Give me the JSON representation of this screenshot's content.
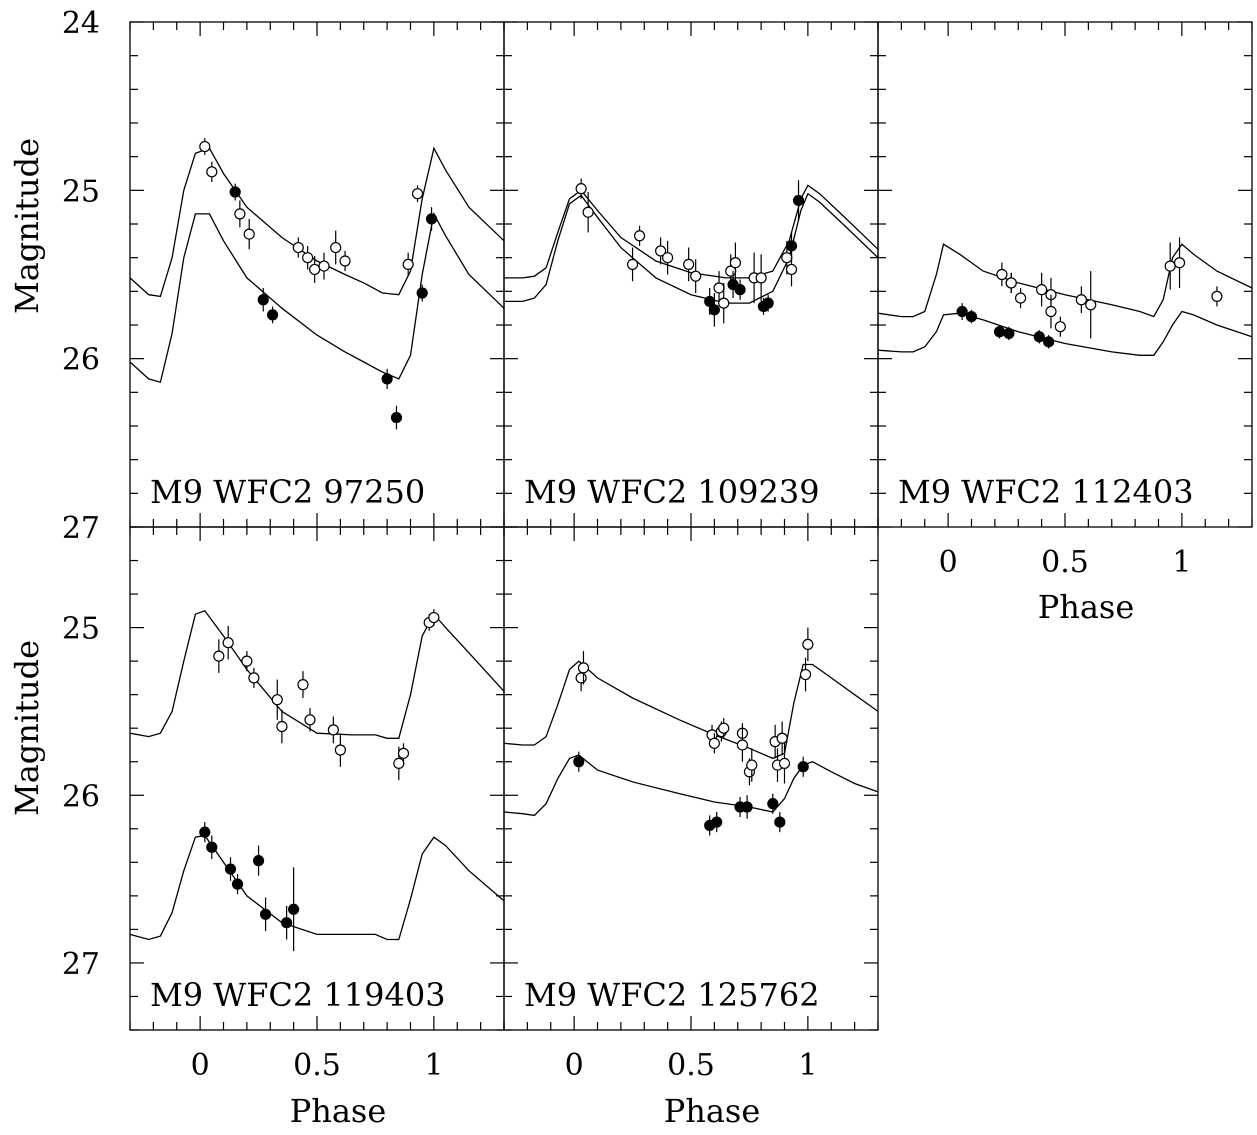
{
  "figure": {
    "xlabel": "Phase",
    "ylabel": "Magnitude",
    "x_tick_labels": [
      "0",
      "0.5",
      "1"
    ],
    "y_tick_labels": [
      "24",
      "25",
      "26",
      "27"
    ]
  },
  "chart_data": [
    {
      "type": "scatter",
      "label": "M9 WFC2 97250",
      "xlabel": "",
      "ylabel": "Magnitude",
      "xlim": [
        -0.3,
        1.3
      ],
      "ylim": [
        27,
        24
      ],
      "y_inverted": true,
      "series": [
        {
          "marker": "open",
          "x": [
            0.02,
            0.05,
            0.17,
            0.21,
            0.42,
            0.46,
            0.49,
            0.53,
            0.58,
            0.62,
            0.89,
            0.93
          ],
          "y": [
            24.74,
            24.89,
            25.14,
            25.26,
            25.34,
            25.4,
            25.47,
            25.45,
            25.34,
            25.42,
            25.44,
            25.02
          ],
          "err": [
            0.05,
            0.06,
            0.08,
            0.09,
            0.06,
            0.07,
            0.08,
            0.08,
            0.1,
            0.06,
            0.07,
            0.05
          ]
        },
        {
          "marker": "filled",
          "x": [
            0.15,
            0.27,
            0.31,
            0.8,
            0.84,
            0.95,
            0.99
          ],
          "y": [
            25.01,
            25.65,
            25.74,
            26.12,
            26.35,
            25.61,
            25.17
          ],
          "err": [
            0.05,
            0.07,
            0.05,
            0.06,
            0.07,
            0.05,
            0.07
          ]
        }
      ],
      "curves": [
        {
          "x": [
            -0.3,
            -0.22,
            -0.17,
            -0.12,
            -0.07,
            -0.02,
            0.04,
            0.1,
            0.2,
            0.35,
            0.5,
            0.62,
            0.7,
            0.78,
            0.85,
            0.9,
            0.95,
            1.0,
            1.05,
            1.15,
            1.3
          ],
          "y": [
            25.52,
            25.62,
            25.63,
            25.4,
            25.0,
            24.78,
            24.75,
            24.9,
            25.1,
            25.28,
            25.42,
            25.5,
            25.55,
            25.61,
            25.62,
            25.48,
            25.05,
            24.75,
            24.88,
            25.1,
            25.3
          ]
        },
        {
          "x": [
            -0.3,
            -0.22,
            -0.17,
            -0.12,
            -0.07,
            -0.02,
            0.04,
            0.1,
            0.2,
            0.35,
            0.5,
            0.62,
            0.7,
            0.78,
            0.85,
            0.9,
            0.95,
            1.0,
            1.05,
            1.15,
            1.3
          ],
          "y": [
            26.02,
            26.12,
            26.14,
            25.85,
            25.4,
            25.14,
            25.14,
            25.3,
            25.52,
            25.7,
            25.86,
            25.96,
            26.02,
            26.08,
            26.12,
            25.98,
            25.5,
            25.14,
            25.27,
            25.5,
            25.7
          ]
        }
      ]
    },
    {
      "type": "scatter",
      "label": "M9 WFC2 109239",
      "xlabel": "",
      "ylabel": "",
      "xlim": [
        -0.3,
        1.3
      ],
      "ylim": [
        27,
        24
      ],
      "y_inverted": true,
      "series": [
        {
          "marker": "open",
          "x": [
            0.03,
            0.06,
            0.25,
            0.28,
            0.37,
            0.4,
            0.49,
            0.52,
            0.62,
            0.64,
            0.67,
            0.69,
            0.77,
            0.8,
            0.91,
            0.93
          ],
          "y": [
            24.99,
            25.13,
            25.44,
            25.27,
            25.36,
            25.4,
            25.44,
            25.51,
            25.58,
            25.67,
            25.48,
            25.43,
            25.52,
            25.52,
            25.4,
            25.47
          ],
          "err": [
            0.06,
            0.12,
            0.1,
            0.06,
            0.08,
            0.1,
            0.1,
            0.1,
            0.1,
            0.12,
            0.1,
            0.12,
            0.15,
            0.14,
            0.1,
            0.1
          ]
        },
        {
          "marker": "filled",
          "x": [
            0.58,
            0.6,
            0.68,
            0.71,
            0.81,
            0.83,
            0.93,
            0.96
          ],
          "y": [
            25.66,
            25.71,
            25.56,
            25.59,
            25.69,
            25.67,
            25.33,
            25.06
          ],
          "err": [
            0.08,
            0.1,
            0.08,
            0.06,
            0.05,
            0.05,
            0.08,
            0.12
          ]
        }
      ],
      "curves": [
        {
          "x": [
            -0.3,
            -0.22,
            -0.17,
            -0.12,
            -0.07,
            -0.02,
            0.03,
            0.1,
            0.2,
            0.35,
            0.5,
            0.65,
            0.75,
            0.85,
            0.92,
            0.97,
            1.0,
            1.05,
            1.15,
            1.3
          ],
          "y": [
            25.52,
            25.52,
            25.51,
            25.46,
            25.25,
            25.05,
            25.0,
            25.12,
            25.28,
            25.42,
            25.49,
            25.52,
            25.52,
            25.48,
            25.3,
            25.05,
            24.97,
            25.02,
            25.15,
            25.35
          ]
        },
        {
          "x": [
            -0.3,
            -0.22,
            -0.17,
            -0.12,
            -0.07,
            -0.02,
            0.03,
            0.1,
            0.2,
            0.35,
            0.5,
            0.65,
            0.75,
            0.85,
            0.92,
            0.97,
            1.0,
            1.05,
            1.15,
            1.3
          ],
          "y": [
            25.66,
            25.66,
            25.64,
            25.56,
            25.3,
            25.08,
            25.03,
            25.16,
            25.34,
            25.52,
            25.62,
            25.67,
            25.67,
            25.6,
            25.4,
            25.12,
            25.02,
            25.07,
            25.2,
            25.4
          ]
        }
      ]
    },
    {
      "type": "scatter",
      "label": "M9 WFC2 112403",
      "xlabel": "Phase",
      "ylabel": "",
      "xlim": [
        -0.3,
        1.3
      ],
      "ylim": [
        27,
        24
      ],
      "y_inverted": true,
      "series": [
        {
          "marker": "open",
          "x": [
            0.23,
            0.27,
            0.27,
            0.31,
            0.4,
            0.44,
            0.44,
            0.48,
            0.57,
            0.61,
            0.95,
            0.99,
            1.15
          ],
          "y": [
            25.5,
            25.55,
            25.55,
            25.64,
            25.59,
            25.62,
            25.72,
            25.81,
            25.65,
            25.68,
            25.45,
            25.43,
            25.63
          ],
          "err": [
            0.07,
            0.06,
            0.06,
            0.06,
            0.1,
            0.1,
            0.1,
            0.06,
            0.08,
            0.2,
            0.14,
            0.15,
            0.06
          ]
        },
        {
          "marker": "filled",
          "x": [
            0.06,
            0.1,
            0.22,
            0.26,
            0.39,
            0.43
          ],
          "y": [
            25.72,
            25.75,
            25.84,
            25.85,
            25.87,
            25.9
          ],
          "err": [
            0.05,
            0.04,
            0.04,
            0.04,
            0.04,
            0.04
          ]
        }
      ],
      "curves": [
        {
          "x": [
            -0.3,
            -0.2,
            -0.15,
            -0.1,
            -0.05,
            -0.02,
            0.05,
            0.15,
            0.3,
            0.5,
            0.7,
            0.82,
            0.88,
            0.92,
            0.96,
            1.0,
            1.05,
            1.15,
            1.3
          ],
          "y": [
            25.73,
            25.75,
            25.75,
            25.72,
            25.5,
            25.32,
            25.38,
            25.48,
            25.55,
            25.62,
            25.68,
            25.72,
            25.75,
            25.65,
            25.4,
            25.32,
            25.38,
            25.48,
            25.58
          ]
        },
        {
          "x": [
            -0.3,
            -0.2,
            -0.15,
            -0.1,
            -0.05,
            -0.02,
            0.05,
            0.15,
            0.3,
            0.5,
            0.7,
            0.82,
            0.88,
            0.92,
            0.96,
            1.0,
            1.05,
            1.15,
            1.3
          ],
          "y": [
            25.95,
            25.96,
            25.96,
            25.93,
            25.84,
            25.74,
            25.73,
            25.77,
            25.84,
            25.91,
            25.96,
            25.98,
            25.98,
            25.9,
            25.8,
            25.72,
            25.74,
            25.8,
            25.87
          ]
        }
      ]
    },
    {
      "type": "scatter",
      "label": "M9 WFC2 119403",
      "xlabel": "Phase",
      "ylabel": "Magnitude",
      "xlim": [
        -0.3,
        1.3
      ],
      "ylim": [
        27.4,
        24.4
      ],
      "y_inverted": true,
      "series": [
        {
          "marker": "open",
          "x": [
            0.08,
            0.12,
            0.2,
            0.23,
            0.33,
            0.35,
            0.44,
            0.47,
            0.57,
            0.6,
            0.85,
            0.87,
            0.98,
            1.0
          ],
          "y": [
            25.17,
            25.09,
            25.2,
            25.3,
            25.43,
            25.59,
            25.34,
            25.55,
            25.61,
            25.73,
            25.81,
            25.75,
            24.97,
            24.94
          ],
          "err": [
            0.1,
            0.1,
            0.06,
            0.06,
            0.12,
            0.1,
            0.08,
            0.07,
            0.08,
            0.1,
            0.1,
            0.06,
            0.05,
            0.05
          ]
        },
        {
          "marker": "filled",
          "x": [
            0.02,
            0.05,
            0.13,
            0.16,
            0.25,
            0.28,
            0.37,
            0.4
          ],
          "y": [
            26.22,
            26.31,
            26.44,
            26.53,
            26.39,
            26.71,
            26.76,
            26.68
          ],
          "err": [
            0.06,
            0.07,
            0.07,
            0.06,
            0.09,
            0.1,
            0.1,
            0.25
          ]
        }
      ],
      "curves": [
        {
          "x": [
            -0.3,
            -0.22,
            -0.17,
            -0.12,
            -0.07,
            -0.02,
            0.02,
            0.1,
            0.2,
            0.35,
            0.5,
            0.65,
            0.75,
            0.8,
            0.85,
            0.9,
            0.95,
            1.0,
            1.05,
            1.15,
            1.3
          ],
          "y": [
            25.63,
            25.65,
            25.63,
            25.5,
            25.2,
            24.92,
            24.9,
            25.05,
            25.25,
            25.5,
            25.63,
            25.64,
            25.64,
            25.66,
            25.66,
            25.4,
            25.05,
            24.92,
            25.0,
            25.15,
            25.38
          ]
        },
        {
          "x": [
            -0.3,
            -0.22,
            -0.17,
            -0.12,
            -0.07,
            -0.02,
            0.02,
            0.1,
            0.2,
            0.35,
            0.5,
            0.65,
            0.75,
            0.8,
            0.85,
            0.9,
            0.95,
            1.0,
            1.05,
            1.15,
            1.3
          ],
          "y": [
            26.83,
            26.86,
            26.84,
            26.7,
            26.45,
            26.25,
            26.24,
            26.4,
            26.6,
            26.76,
            26.83,
            26.83,
            26.83,
            26.86,
            26.86,
            26.62,
            26.35,
            26.25,
            26.3,
            26.45,
            26.63
          ]
        }
      ]
    },
    {
      "type": "scatter",
      "label": "M9 WFC2 125762",
      "xlabel": "Phase",
      "ylabel": "",
      "xlim": [
        -0.3,
        1.3
      ],
      "ylim": [
        27.4,
        24.4
      ],
      "y_inverted": true,
      "series": [
        {
          "marker": "open",
          "x": [
            0.03,
            0.04,
            0.59,
            0.6,
            0.63,
            0.64,
            0.72,
            0.72,
            0.75,
            0.76,
            0.86,
            0.87,
            0.89,
            0.9,
            0.99,
            1.0
          ],
          "y": [
            25.3,
            25.24,
            25.64,
            25.69,
            25.62,
            25.6,
            25.63,
            25.7,
            25.86,
            25.82,
            25.68,
            25.82,
            25.66,
            25.81,
            25.28,
            25.1
          ],
          "err": [
            0.08,
            0.1,
            0.06,
            0.06,
            0.06,
            0.06,
            0.06,
            0.1,
            0.08,
            0.1,
            0.1,
            0.1,
            0.1,
            0.12,
            0.1,
            0.1
          ]
        },
        {
          "marker": "filled",
          "x": [
            0.02,
            0.58,
            0.61,
            0.71,
            0.74,
            0.85,
            0.88,
            0.98
          ],
          "y": [
            25.8,
            26.18,
            26.16,
            26.07,
            26.07,
            26.05,
            26.16,
            25.83
          ],
          "err": [
            0.06,
            0.06,
            0.06,
            0.06,
            0.07,
            0.06,
            0.06,
            0.06
          ]
        }
      ],
      "curves": [
        {
          "x": [
            -0.3,
            -0.22,
            -0.17,
            -0.12,
            -0.07,
            -0.02,
            0.02,
            0.1,
            0.25,
            0.45,
            0.6,
            0.75,
            0.85,
            0.9,
            0.94,
            0.98,
            1.02,
            1.1,
            1.2,
            1.3
          ],
          "y": [
            25.69,
            25.7,
            25.7,
            25.65,
            25.46,
            25.25,
            25.2,
            25.3,
            25.42,
            25.55,
            25.64,
            25.72,
            25.78,
            25.75,
            25.45,
            25.22,
            25.22,
            25.3,
            25.4,
            25.5
          ]
        },
        {
          "x": [
            -0.3,
            -0.22,
            -0.17,
            -0.12,
            -0.07,
            -0.02,
            0.02,
            0.1,
            0.25,
            0.45,
            0.6,
            0.75,
            0.85,
            0.9,
            0.94,
            0.98,
            1.02,
            1.1,
            1.2,
            1.3
          ],
          "y": [
            26.1,
            26.11,
            26.12,
            26.05,
            25.9,
            25.78,
            25.76,
            25.85,
            25.92,
            25.99,
            26.04,
            26.07,
            26.1,
            26.02,
            25.9,
            25.82,
            25.8,
            25.86,
            25.93,
            25.98
          ]
        }
      ]
    }
  ]
}
